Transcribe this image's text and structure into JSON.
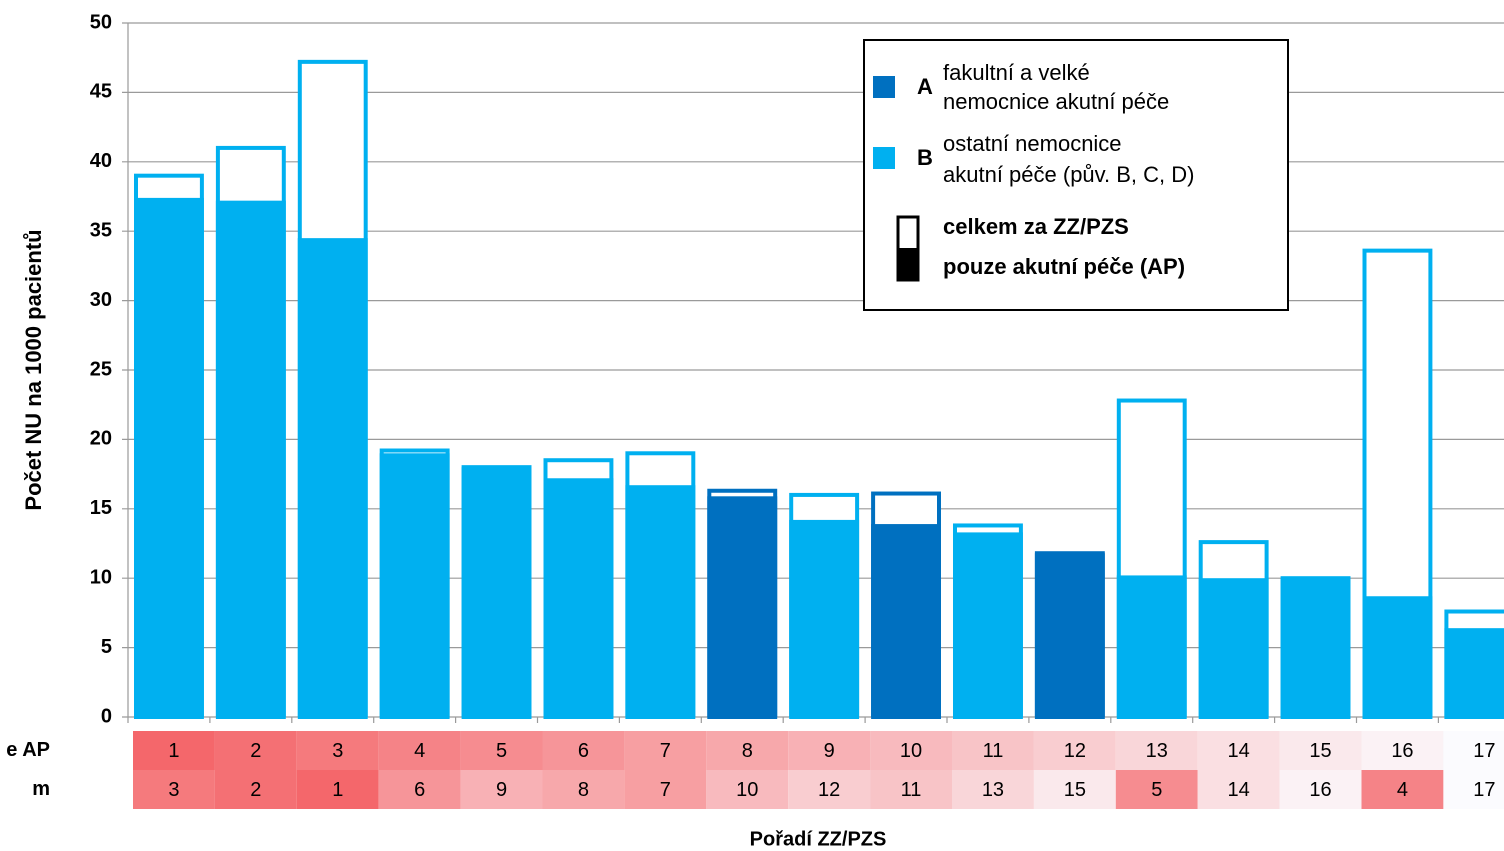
{
  "chart_data": {
    "type": "bar",
    "ylabel": "Počet NU na 1000 pacientů",
    "xlabel": "Pořadí ZZ/PZS",
    "ylim": [
      0,
      50
    ],
    "yticks": [
      0,
      5,
      10,
      15,
      20,
      25,
      30,
      35,
      40,
      45,
      50
    ],
    "grid": true,
    "legend": "top-right",
    "groups": [
      {
        "key": "A",
        "name": [
          "fakultní a velké",
          "nemocnice akutní péče"
        ],
        "color": "#0070c0"
      },
      {
        "key": "B",
        "name": [
          "ostatní nemocnice",
          "akutní péče (pův. B, C, D)"
        ],
        "color": "#00b0f0"
      }
    ],
    "bar_group": [
      "B",
      "B",
      "B",
      "B",
      "B",
      "B",
      "B",
      "A",
      "B",
      "A",
      "B",
      "A",
      "B",
      "B",
      "B",
      "B",
      "B"
    ],
    "series": [
      {
        "name": "celkem za ZZ/PZS",
        "values": [
          39.0,
          41.0,
          47.2,
          19.2,
          18.0,
          18.5,
          19.0,
          16.3,
          16.0,
          16.1,
          13.8,
          11.8,
          22.8,
          12.6,
          10.0,
          33.6,
          7.6
        ]
      },
      {
        "name": "pouze akutní péče (AP)",
        "values": [
          37.4,
          37.2,
          34.5,
          19.0,
          18.0,
          17.2,
          16.7,
          15.9,
          14.2,
          13.9,
          13.3,
          11.8,
          10.2,
          10.0,
          10.0,
          8.7,
          6.4
        ]
      }
    ],
    "rank_rows": [
      {
        "label": "e AP",
        "values": [
          1,
          2,
          3,
          4,
          5,
          6,
          7,
          8,
          9,
          10,
          11,
          12,
          13,
          14,
          15,
          16,
          17
        ]
      },
      {
        "label": "m",
        "values": [
          3,
          2,
          1,
          6,
          9,
          8,
          7,
          10,
          12,
          11,
          13,
          15,
          5,
          14,
          16,
          4,
          17
        ]
      }
    ],
    "heat_colors": [
      "#f4676b",
      "#fbfbfe"
    ]
  }
}
